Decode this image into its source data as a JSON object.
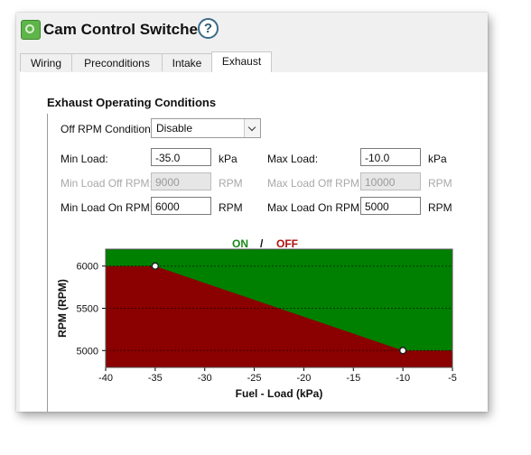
{
  "window": {
    "title": "Cam Control Switched",
    "help": "?"
  },
  "tabs": [
    {
      "label": "Wiring"
    },
    {
      "label": "Preconditions"
    },
    {
      "label": "Intake"
    },
    {
      "label": "Exhaust"
    }
  ],
  "active_tab": "Exhaust",
  "section": {
    "title": "Exhaust Operating Conditions",
    "off_rpm_condition": {
      "label": "Off RPM Condition",
      "value": "Disable"
    },
    "min_load": {
      "label": "Min Load:",
      "value": "-35.0",
      "unit": "kPa"
    },
    "max_load": {
      "label": "Max Load:",
      "value": "-10.0",
      "unit": "kPa"
    },
    "min_load_off_rpm": {
      "label": "Min Load Off RPM:",
      "value": "9000",
      "unit": "RPM"
    },
    "max_load_off_rpm": {
      "label": "Max Load Off RPM:",
      "value": "10000",
      "unit": "RPM"
    },
    "min_load_on_rpm": {
      "label": "Min Load On RPM:",
      "value": "6000",
      "unit": "RPM"
    },
    "max_load_on_rpm": {
      "label": "Max Load On RPM:",
      "value": "5000",
      "unit": "RPM"
    }
  },
  "legend": {
    "on": "ON",
    "slash": "/",
    "off": "OFF",
    "on_color": "#008000",
    "off_color": "#8b0000"
  },
  "chart_data": {
    "type": "area",
    "xlabel": "Fuel - Load (kPa)",
    "ylabel": "RPM (RPM)",
    "xlim": [
      -40,
      -5
    ],
    "ylim": [
      4800,
      6200
    ],
    "x_ticks": [
      "-40",
      "-35",
      "-30",
      "-25",
      "-20",
      "-15",
      "-10",
      "-5"
    ],
    "y_ticks": [
      "5000",
      "5500",
      "6000"
    ],
    "grid": "horizontal dashed",
    "boundary": {
      "x": [
        -40,
        -35,
        -10,
        -5
      ],
      "y": [
        6000,
        6000,
        5000,
        5000
      ]
    },
    "points": [
      {
        "x": -35,
        "y": 6000
      },
      {
        "x": -10,
        "y": 5000
      }
    ],
    "regions": [
      {
        "name": "ON",
        "side": "above",
        "color": "#008000"
      },
      {
        "name": "OFF",
        "side": "below",
        "color": "#8b0000"
      }
    ]
  }
}
